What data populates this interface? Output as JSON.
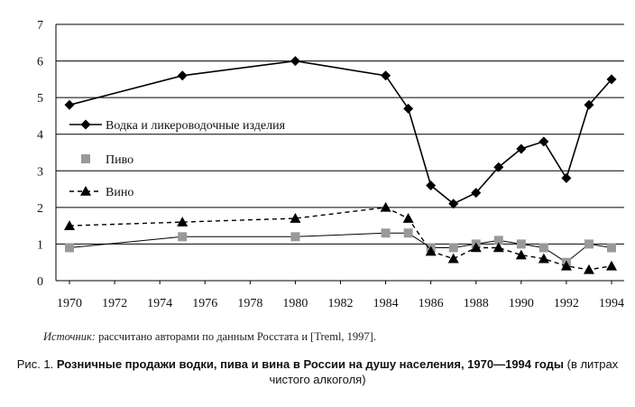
{
  "chart_data": {
    "type": "line",
    "title": "",
    "xlabel": "",
    "ylabel": "",
    "xlim": [
      1970,
      1994
    ],
    "ylim": [
      0,
      7
    ],
    "xticks": [
      1970,
      1972,
      1974,
      1976,
      1978,
      1980,
      1982,
      1984,
      1986,
      1988,
      1990,
      1992,
      1994
    ],
    "yticks": [
      0,
      1,
      2,
      3,
      4,
      5,
      6,
      7
    ],
    "grid": "horizontal",
    "legend_position": "left",
    "series": [
      {
        "name": "Водка и ликероводочные изделия",
        "marker": "diamond",
        "line": "solid",
        "color": "#000000",
        "points": [
          [
            1970,
            4.8
          ],
          [
            1975,
            5.6
          ],
          [
            1980,
            6.0
          ],
          [
            1984,
            5.6
          ],
          [
            1985,
            4.7
          ],
          [
            1986,
            2.6
          ],
          [
            1987,
            2.1
          ],
          [
            1988,
            2.4
          ],
          [
            1989,
            3.1
          ],
          [
            1990,
            3.6
          ],
          [
            1991,
            3.8
          ],
          [
            1992,
            2.8
          ],
          [
            1993,
            4.8
          ],
          [
            1994,
            5.5
          ]
        ]
      },
      {
        "name": "Пиво",
        "marker": "square",
        "line": "solid-thin",
        "color": "#999999",
        "points": [
          [
            1970,
            0.9
          ],
          [
            1975,
            1.2
          ],
          [
            1980,
            1.2
          ],
          [
            1984,
            1.3
          ],
          [
            1985,
            1.3
          ],
          [
            1986,
            0.9
          ],
          [
            1987,
            0.9
          ],
          [
            1988,
            1.0
          ],
          [
            1989,
            1.1
          ],
          [
            1990,
            1.0
          ],
          [
            1991,
            0.9
          ],
          [
            1992,
            0.5
          ],
          [
            1993,
            1.0
          ],
          [
            1994,
            0.9
          ]
        ]
      },
      {
        "name": "Вино",
        "marker": "triangle",
        "line": "dashed",
        "color": "#000000",
        "points": [
          [
            1970,
            1.5
          ],
          [
            1975,
            1.6
          ],
          [
            1980,
            1.7
          ],
          [
            1984,
            2.0
          ],
          [
            1985,
            1.7
          ],
          [
            1986,
            0.8
          ],
          [
            1987,
            0.6
          ],
          [
            1988,
            0.9
          ],
          [
            1989,
            0.9
          ],
          [
            1990,
            0.7
          ],
          [
            1991,
            0.6
          ],
          [
            1992,
            0.4
          ],
          [
            1993,
            0.3
          ],
          [
            1994,
            0.4
          ]
        ]
      }
    ]
  },
  "source": {
    "label": "Источник:",
    "text": " рассчитано авторами по данным Росстата и [Treml, 1997]."
  },
  "caption": {
    "prefix": "Рис. 1. ",
    "bold": "Розничные продажи водки, пива и вина в России на душу населения, 1970—1994 годы",
    "suffix": " (в литрах чистого алкоголя)"
  }
}
